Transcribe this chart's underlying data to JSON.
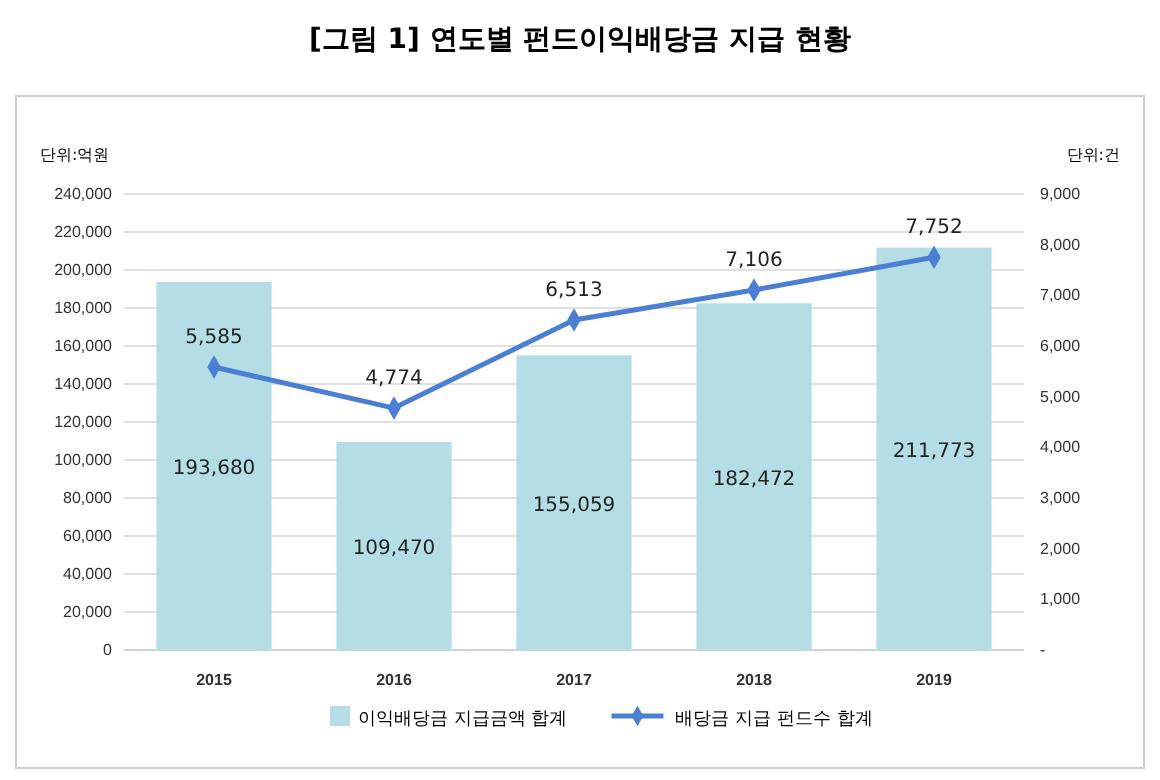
{
  "chart_data": {
    "type": "bar",
    "title": "[그림 1] 연도별 펀드이익배당금 지급 현황",
    "ylabel": "단위:억원",
    "y2label": "단위:건",
    "categories": [
      "2015",
      "2016",
      "2017",
      "2018",
      "2019"
    ],
    "series": [
      {
        "name": "이익배당금 지급금액 합계",
        "color": "#b4dde6",
        "values": [
          193680,
          109470,
          155059,
          182472,
          211773
        ],
        "value_labels": [
          "193,680",
          "109,470",
          "155,059",
          "182,472",
          "211,773"
        ]
      },
      {
        "name": "배당금 지급 펀드수 합계",
        "type": "line",
        "axis": "y2",
        "color": "#4a7fd4",
        "marker": "diamond",
        "values": [
          5585,
          4774,
          6513,
          7106,
          7752
        ],
        "value_labels": [
          "5,585",
          "4,774",
          "6,513",
          "7,106",
          "7,752"
        ]
      }
    ],
    "ylim": [
      0,
      240000
    ],
    "yticks": [
      0,
      {
        "value": 20000,
        "label": "20,000"
      },
      {
        "value": 40000,
        "label": "40,000"
      },
      {
        "value": 60000,
        "label": "60,000"
      },
      {
        "value": 80000,
        "label": "80,000"
      },
      {
        "value": 100000,
        "label": "100,000"
      },
      {
        "value": 120000,
        "label": "120,000"
      },
      {
        "value": 140000,
        "label": "140,000"
      },
      {
        "value": 160000,
        "label": "160,000"
      },
      {
        "value": 180000,
        "label": "180,000"
      },
      {
        "value": 200000,
        "label": "200,000"
      },
      {
        "value": 220000,
        "label": "220,000"
      },
      {
        "value": 240000,
        "label": "240,000"
      }
    ],
    "y2lim": [
      0,
      9000
    ],
    "y2ticks": [
      {
        "value": 0,
        "label": "-"
      },
      {
        "value": 1000,
        "label": "1,000"
      },
      {
        "value": 2000,
        "label": "2,000"
      },
      {
        "value": 3000,
        "label": "3,000"
      },
      {
        "value": 4000,
        "label": "4,000"
      },
      {
        "value": 5000,
        "label": "5,000"
      },
      {
        "value": 6000,
        "label": "6,000"
      },
      {
        "value": 7000,
        "label": "7,000"
      },
      {
        "value": 8000,
        "label": "8,000"
      },
      {
        "value": 9000,
        "label": "9,000"
      }
    ],
    "grid": "y",
    "legend": "bottom"
  }
}
